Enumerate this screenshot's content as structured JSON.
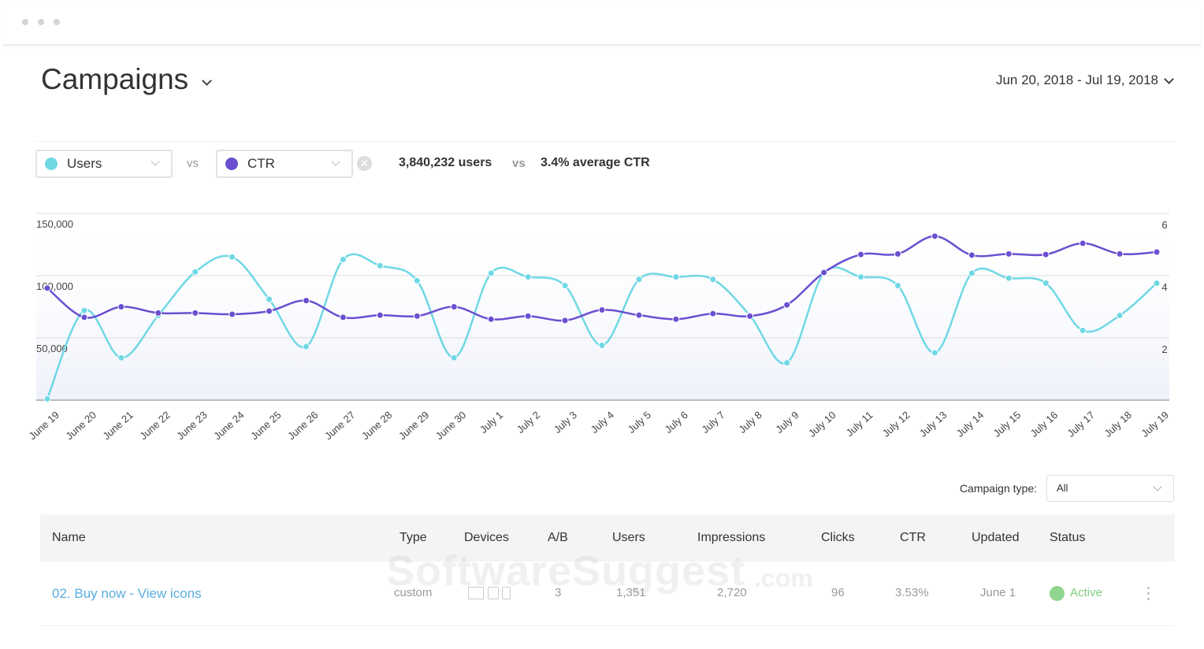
{
  "header": {
    "title": "Campaigns",
    "date_range": "Jun 20, 2018 - Jul 19, 2018"
  },
  "controls": {
    "vs": "vs",
    "summary_1": "3,840,232 users",
    "summary_vs": "vs",
    "summary_2": "3.4% average CTR"
  },
  "chart_data": {
    "type": "line",
    "categories": [
      "June 19",
      "June 20",
      "June 21",
      "June 22",
      "June 23",
      "June 24",
      "June 25",
      "June 26",
      "June 27",
      "June 28",
      "June 29",
      "June 30",
      "July 1",
      "July 2",
      "July 3",
      "July 4",
      "July 5",
      "July 6",
      "July 7",
      "July 8",
      "July 9",
      "July 10",
      "July 11",
      "July 12",
      "July 13",
      "July 14",
      "July 15",
      "July 16",
      "July 17",
      "July 18",
      "July 19"
    ],
    "series": [
      {
        "name": "Users",
        "color": "#6fd8e5",
        "values": [
          1000,
          72000,
          34000,
          68000,
          103000,
          115000,
          81000,
          43000,
          113000,
          108000,
          96000,
          34000,
          102000,
          99000,
          92000,
          44000,
          97000,
          99000,
          97000,
          68000,
          30000,
          102000,
          99000,
          92000,
          38000,
          102000,
          98000,
          94000,
          56000,
          68000,
          94000
        ]
      },
      {
        "name": "CTR",
        "color": "#6b4fd0",
        "axis": "y2",
        "values": [
          3.6,
          2.66,
          3.0,
          2.8,
          2.8,
          2.76,
          2.86,
          3.2,
          2.66,
          2.73,
          2.7,
          3.0,
          2.6,
          2.7,
          2.56,
          2.9,
          2.73,
          2.6,
          2.78,
          2.7,
          3.06,
          4.1,
          4.68,
          4.7,
          5.27,
          4.66,
          4.7,
          4.68,
          5.04,
          4.7,
          4.76
        ]
      }
    ],
    "ylim": [
      0,
      150000
    ],
    "yticks": [
      {
        "value": 50000,
        "label": "50,000"
      },
      {
        "value": 100000,
        "label": "100,000"
      },
      {
        "value": 150000,
        "label": "150,000"
      }
    ],
    "y2lim": [
      0,
      6
    ],
    "y2ticks": [
      2,
      4,
      6
    ],
    "grid": true
  },
  "filter": {
    "label": "Campaign type:",
    "value": "All"
  },
  "table": {
    "columns": [
      "Name",
      "Type",
      "Devices",
      "A/B",
      "Users",
      "Impressions",
      "Clicks",
      "CTR",
      "Updated",
      "Status"
    ],
    "rows": [
      {
        "name": "02. Buy now - View icons",
        "type": "custom",
        "ab": "3",
        "users": "1,351",
        "impressions": "2,720",
        "clicks": "96",
        "ctr": "3.53%",
        "updated": "June 1",
        "status": "Active"
      }
    ]
  },
  "watermark": [
    "SoftwareSuggest",
    ".com"
  ]
}
